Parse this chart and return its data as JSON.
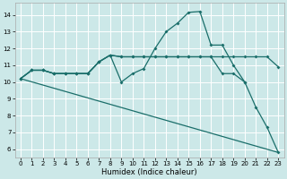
{
  "xlabel": "Humidex (Indice chaleur)",
  "background_color": "#cce8e8",
  "grid_color": "#ffffff",
  "line_color": "#1a6e6a",
  "xlim": [
    -0.5,
    23.5
  ],
  "ylim": [
    5.5,
    14.7
  ],
  "xticks": [
    0,
    1,
    2,
    3,
    4,
    5,
    6,
    7,
    8,
    9,
    10,
    11,
    12,
    13,
    14,
    15,
    16,
    17,
    18,
    19,
    20,
    21,
    22,
    23
  ],
  "yticks": [
    6,
    7,
    8,
    9,
    10,
    11,
    12,
    13,
    14
  ],
  "line1_x": [
    0,
    1,
    2,
    3,
    4,
    5,
    6,
    7,
    8,
    9,
    10,
    11,
    12,
    13,
    14,
    15,
    16,
    17,
    18,
    19,
    20,
    21,
    22,
    23
  ],
  "line1_y": [
    10.2,
    10.7,
    10.7,
    10.5,
    10.5,
    10.5,
    10.5,
    11.2,
    11.6,
    10.0,
    10.5,
    10.8,
    12.0,
    13.0,
    13.5,
    14.15,
    14.2,
    12.2,
    12.2,
    11.0,
    10.0,
    8.5,
    7.3,
    5.8
  ],
  "line2_x": [
    0,
    1,
    2,
    3,
    4,
    5,
    6,
    7,
    8,
    9,
    10,
    11,
    12,
    13,
    14,
    15,
    16,
    17,
    18,
    19,
    20,
    21,
    22,
    23
  ],
  "line2_y": [
    10.2,
    10.7,
    10.7,
    10.5,
    10.5,
    10.5,
    10.5,
    11.2,
    11.6,
    11.5,
    11.5,
    11.5,
    11.5,
    11.5,
    11.5,
    11.5,
    11.5,
    11.5,
    11.5,
    11.5,
    11.5,
    11.5,
    11.5,
    10.9
  ],
  "line3_x": [
    0,
    1,
    2,
    3,
    4,
    5,
    6,
    7,
    8,
    9,
    10,
    11,
    12,
    13,
    14,
    15,
    16,
    17,
    18,
    19,
    20
  ],
  "line3_y": [
    10.2,
    10.7,
    10.7,
    10.5,
    10.5,
    10.5,
    10.5,
    11.2,
    11.6,
    11.5,
    11.5,
    11.5,
    11.5,
    11.5,
    11.5,
    11.5,
    11.5,
    11.5,
    10.5,
    10.5,
    10.0
  ],
  "line4_x": [
    0,
    23
  ],
  "line4_y": [
    10.2,
    5.8
  ]
}
